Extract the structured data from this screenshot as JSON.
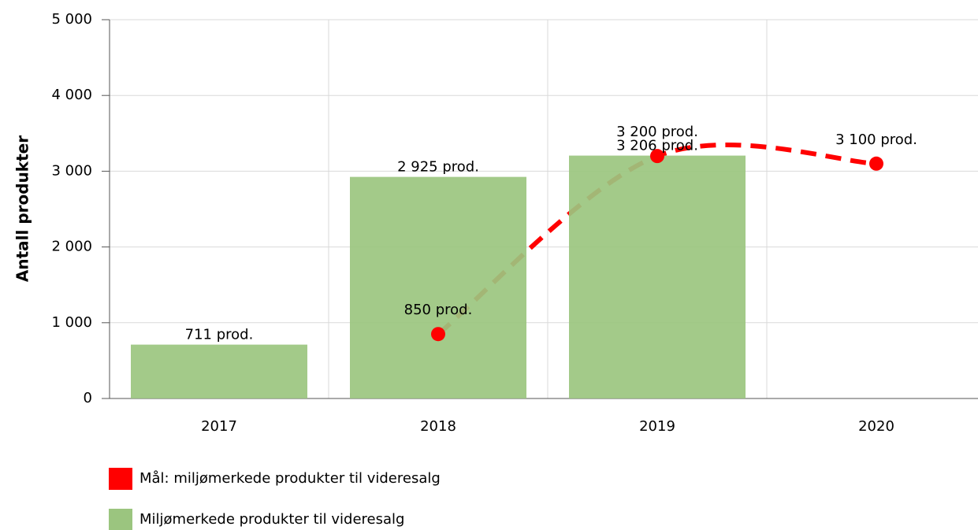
{
  "chart_data": {
    "type": "bar",
    "y_label": "Antall produkter",
    "categories": [
      "2017",
      "2018",
      "2019",
      "2020"
    ],
    "series": [
      {
        "name": "Mål: miljømerkede produkter til videresalg",
        "type": "line",
        "color": "#ff0000",
        "values": [
          null,
          850,
          3200,
          3100
        ],
        "value_labels": [
          null,
          "850 prod.",
          "3 200 prod.",
          "3 100 prod."
        ]
      },
      {
        "name": "Miljømerkede produkter til videresalg",
        "type": "bar",
        "color": "#9bc57f",
        "values": [
          711,
          2925,
          3206,
          null
        ],
        "value_labels": [
          "711 prod.",
          "2 925 prod.",
          "3 206 prod.",
          null
        ]
      }
    ],
    "ylim": [
      0,
      5000
    ],
    "yticks": [
      0,
      {
        "value": 1000,
        "label": "1 000"
      },
      {
        "value": 2000,
        "label": "2 000"
      },
      {
        "value": 3000,
        "label": "3 000"
      },
      {
        "value": 4000,
        "label": "4 000"
      },
      {
        "value": 5000,
        "label": "5 000"
      }
    ],
    "grid": true
  }
}
